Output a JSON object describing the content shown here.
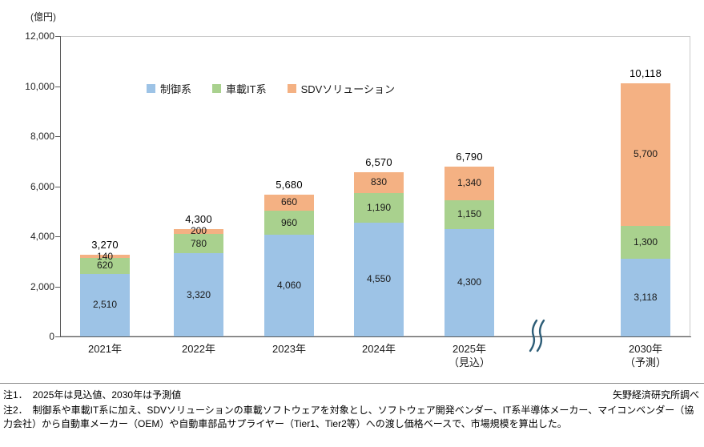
{
  "chart_data": {
    "type": "bar",
    "stacked": true,
    "title": "",
    "ylabel": "(億円)",
    "xlabel": "",
    "ylim": [
      0,
      12000
    ],
    "ytick_step": 2000,
    "yticks": [
      "0",
      "2,000",
      "4,000",
      "6,000",
      "8,000",
      "10,000",
      "12,000"
    ],
    "grid": false,
    "legend_position": "top-inside",
    "axis_break_between": [
      "2025年（見込）",
      "2030年（予測）"
    ],
    "categories": [
      {
        "label": "2021年",
        "sublabel": ""
      },
      {
        "label": "2022年",
        "sublabel": ""
      },
      {
        "label": "2023年",
        "sublabel": ""
      },
      {
        "label": "2024年",
        "sublabel": ""
      },
      {
        "label": "2025年",
        "sublabel": "（見込）"
      },
      {
        "label": "2030年",
        "sublabel": "（予測）"
      }
    ],
    "series": [
      {
        "name": "制御系",
        "color": "#9DC3E6",
        "values": [
          2510,
          3320,
          4060,
          4550,
          4300,
          3118
        ]
      },
      {
        "name": "車載IT系",
        "color": "#A9D18E",
        "values": [
          620,
          780,
          960,
          1190,
          1150,
          1300
        ]
      },
      {
        "name": "SDVソリューション",
        "color": "#F4B183",
        "values": [
          140,
          200,
          660,
          830,
          1340,
          5700
        ]
      }
    ],
    "segment_labels": [
      [
        "2,510",
        "620",
        "140"
      ],
      [
        "3,320",
        "780",
        "200"
      ],
      [
        "4,060",
        "960",
        "660"
      ],
      [
        "4,550",
        "1,190",
        "830"
      ],
      [
        "4,300",
        "1,150",
        "1,340"
      ],
      [
        "3,118",
        "1,300",
        "5,700"
      ]
    ],
    "totals": [
      "3,270",
      "4,300",
      "5,680",
      "6,570",
      "6,790",
      "10,118"
    ]
  },
  "notes": {
    "note1": "注1．　2025年は見込値、2030年は予測値",
    "source": "矢野経済研究所調べ",
    "note2": "注2．　制御系や車載IT系に加え、SDVソリューションの車載ソフトウェアを対象とし、ソフトウェア開発ベンダー、IT系半導体メーカー、マイコンベンダー（協力会社）から自動車メーカー（OEM）や自動車部品サプライヤー（Tier1、Tier2等）への渡し価格ベースで、市場規模を算出した。"
  }
}
